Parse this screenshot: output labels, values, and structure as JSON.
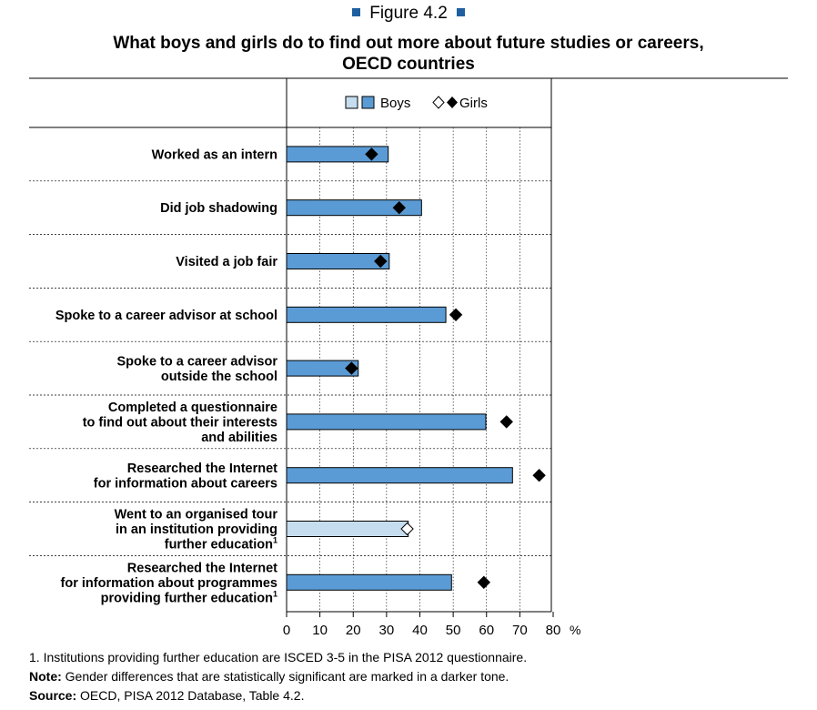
{
  "figure_label": "Figure 4.2",
  "title_line1": "What boys and girls do to find out more about future studies or careers,",
  "title_line2": "OECD countries",
  "legend": {
    "boys": "Boys",
    "girls": "Girls"
  },
  "colors": {
    "boys_significant": "#5b9bd5",
    "boys_not_significant": "#c5ddee",
    "bar_border": "#000000",
    "girls_marker": "#000000",
    "figure_squares": "#1f5fa0"
  },
  "chart_data": {
    "type": "bar",
    "orientation": "horizontal",
    "xlim": [
      0,
      80
    ],
    "x_ticks": [
      0,
      10,
      20,
      30,
      40,
      50,
      60,
      70,
      80
    ],
    "x_unit": "%",
    "categories": [
      {
        "lines": [
          "Worked as an intern"
        ],
        "sup": ""
      },
      {
        "lines": [
          "Did job shadowing"
        ],
        "sup": ""
      },
      {
        "lines": [
          "Visited a job fair"
        ],
        "sup": ""
      },
      {
        "lines": [
          "Spoke to a career advisor at school"
        ],
        "sup": ""
      },
      {
        "lines": [
          "Spoke to a career advisor",
          "outside the school"
        ],
        "sup": ""
      },
      {
        "lines": [
          "Completed a questionnaire",
          "to find out about their interests",
          "and abilities"
        ],
        "sup": ""
      },
      {
        "lines": [
          "Researched the Internet",
          "for information about careers"
        ],
        "sup": ""
      },
      {
        "lines": [
          "Went to an organised tour",
          "in an institution providing",
          "further education"
        ],
        "sup": "1"
      },
      {
        "lines": [
          "Researched the Internet",
          "for information about programmes",
          "providing further education"
        ],
        "sup": "1"
      }
    ],
    "series": [
      {
        "name": "Boys",
        "values": [
          30.5,
          40.5,
          30.8,
          47.8,
          21.5,
          59.8,
          67.8,
          36.5,
          49.5
        ]
      },
      {
        "name": "Girls",
        "values": [
          25.5,
          33.8,
          28.2,
          50.8,
          19.5,
          66.0,
          75.8,
          36.2,
          59.2
        ]
      }
    ],
    "significant": [
      true,
      true,
      true,
      true,
      true,
      true,
      true,
      false,
      true
    ]
  },
  "notes": {
    "footnote": "1. Institutions providing further education are ISCED 3-5 in the PISA 2012 questionnaire.",
    "note_label": "Note:",
    "note_text": " Gender differences that are statistically significant are marked in a darker tone.",
    "source_label": "Source:",
    "source_text": " OECD, PISA 2012 Database, Table 4.2."
  }
}
